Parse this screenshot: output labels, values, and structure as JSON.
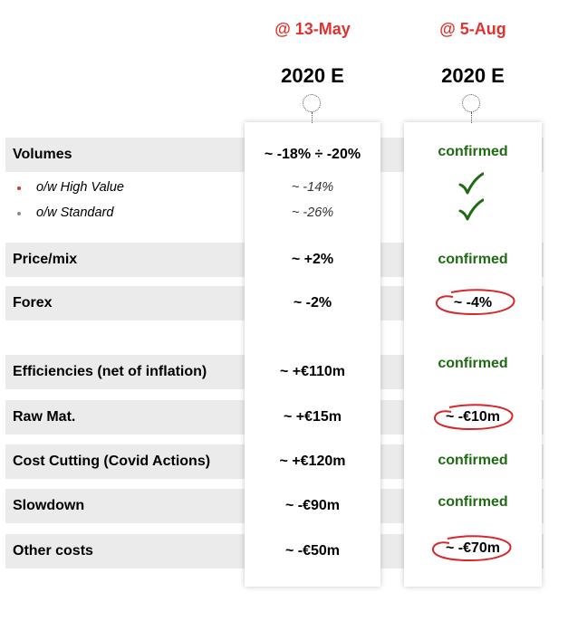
{
  "header": {
    "col1_date": "@ 13-May",
    "col2_date": "@ 5-Aug",
    "col1_year": "2020 E",
    "col2_year": "2020 E"
  },
  "rows": {
    "volumes": {
      "label": "Volumes",
      "may": "~ -18% ÷ -20%",
      "aug": "confirmed"
    },
    "high_value": {
      "label": "o/w High Value",
      "may": "~ -14%",
      "aug_icon": "check-icon"
    },
    "standard": {
      "label": "o/w Standard",
      "may": "~ -26%",
      "aug_icon": "check-icon"
    },
    "price_mix": {
      "label": "Price/mix",
      "may": "~ +2%",
      "aug": "confirmed"
    },
    "forex": {
      "label": "Forex",
      "may": "~ -2%",
      "aug": "~ -4%"
    },
    "efficiencies": {
      "label": "Efficiencies (net of inflation)",
      "may": "~ +€110m",
      "aug": "confirmed"
    },
    "raw_mat": {
      "label": "Raw Mat.",
      "may": "~ +€15m",
      "aug": "~ -€10m"
    },
    "cost_cutting": {
      "label": "Cost Cutting (Covid Actions)",
      "may": "~ +€120m",
      "aug": "confirmed"
    },
    "slowdown": {
      "label": "Slowdown",
      "may": "~ -€90m",
      "aug": "confirmed"
    },
    "other_costs": {
      "label": "Other costs",
      "may": "~ -€50m",
      "aug": "~ -€70m"
    }
  },
  "colors": {
    "accent_red": "#e0332f",
    "confirmed_green": "#1e6b12",
    "band_gray": "#ebebeb",
    "bullet_red": "#e0332f",
    "bullet_gray": "#8c8c8c"
  }
}
